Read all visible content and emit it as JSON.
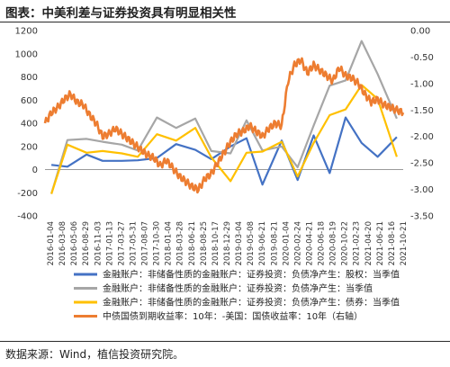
{
  "header": {
    "title": "图表：中美利差与证券投资具有明显相关性"
  },
  "footer": {
    "source": "数据来源：Wind，植信投资研究院。"
  },
  "chart_data": {
    "type": "line",
    "left_axis": {
      "ylim": [
        -400,
        1200
      ],
      "ticks": [
        "1200",
        "1000",
        "800",
        "600",
        "400",
        "200",
        "0",
        "-200",
        "-400"
      ]
    },
    "right_axis": {
      "ylim": [
        -3.5,
        0
      ],
      "ticks": [
        "0.00",
        "-0.50",
        "-1.00",
        "-1.50",
        "-2.00",
        "-2.50",
        "-3.00",
        "-3.50"
      ]
    },
    "x_ticks": [
      "2016-01-04",
      "2016-03-08",
      "2016-05-06",
      "2016-08-29",
      "2016-11-03",
      "2017-01-13",
      "2017-03-27",
      "2017-05-31",
      "2017-08-07",
      "2017-10-30",
      "2018-01-04",
      "2018-03-28",
      "2018-06-21",
      "2018-08-25",
      "2018-10-17",
      "2018-12-29",
      "2019-03-04",
      "2019-05-08",
      "2019-06-21",
      "2019-08-21",
      "2020-01-04",
      "2020-02-24",
      "2020-04-21",
      "2020-06-18",
      "2020-08-19",
      "2020-10-22",
      "2021-02-23",
      "2021-04-20",
      "2021-06-21",
      "2021-08-16",
      "2021-10-21"
    ],
    "grid": false,
    "legend_placement": "bottom",
    "series": [
      {
        "name": "金融账户：非储备性质的金融账户：证券投资：负债净产生：股权：当季值",
        "axis": "left",
        "color": "#4472c4",
        "step": "quarterly",
        "points": [
          [
            0.02,
            40
          ],
          [
            0.07,
            25
          ],
          [
            0.13,
            130
          ],
          [
            0.18,
            75
          ],
          [
            0.24,
            75
          ],
          [
            0.29,
            80
          ],
          [
            0.35,
            100
          ],
          [
            0.41,
            220
          ],
          [
            0.47,
            170
          ],
          [
            0.52,
            90
          ],
          [
            0.58,
            200
          ],
          [
            0.63,
            270
          ],
          [
            0.68,
            -130
          ],
          [
            0.74,
            250
          ],
          [
            0.79,
            -90
          ],
          [
            0.84,
            295
          ],
          [
            0.89,
            -30
          ],
          [
            0.94,
            450
          ],
          [
            0.99,
            230
          ],
          [
            1.04,
            110
          ],
          [
            1.1,
            280
          ]
        ]
      },
      {
        "name": "金融账户：非储备性质的金融账户：证券投资：负债净产生：当季值",
        "axis": "left",
        "color": "#a6a6a6",
        "step": "quarterly",
        "points": [
          [
            0.02,
            -210
          ],
          [
            0.07,
            255
          ],
          [
            0.13,
            265
          ],
          [
            0.18,
            240
          ],
          [
            0.24,
            215
          ],
          [
            0.29,
            165
          ],
          [
            0.35,
            450
          ],
          [
            0.41,
            360
          ],
          [
            0.47,
            440
          ],
          [
            0.52,
            160
          ],
          [
            0.58,
            140
          ],
          [
            0.63,
            425
          ],
          [
            0.68,
            165
          ],
          [
            0.74,
            200
          ],
          [
            0.79,
            20
          ],
          [
            0.84,
            380
          ],
          [
            0.89,
            725
          ],
          [
            0.94,
            770
          ],
          [
            0.99,
            1110
          ],
          [
            1.04,
            825
          ],
          [
            1.1,
            440
          ]
        ]
      },
      {
        "name": "金融账户：非储备性质的金融账户：证券投资：负债净产生：债券：当季值",
        "axis": "left",
        "color": "#ffc000",
        "step": "quarterly",
        "points": [
          [
            0.02,
            -210
          ],
          [
            0.07,
            215
          ],
          [
            0.13,
            145
          ],
          [
            0.18,
            160
          ],
          [
            0.24,
            140
          ],
          [
            0.29,
            110
          ],
          [
            0.35,
            305
          ],
          [
            0.41,
            250
          ],
          [
            0.47,
            360
          ],
          [
            0.52,
            105
          ],
          [
            0.58,
            -100
          ],
          [
            0.63,
            145
          ],
          [
            0.68,
            155
          ],
          [
            0.74,
            240
          ],
          [
            0.79,
            -60
          ],
          [
            0.84,
            230
          ],
          [
            0.89,
            470
          ],
          [
            0.94,
            520
          ],
          [
            0.99,
            730
          ],
          [
            1.04,
            610
          ],
          [
            1.1,
            110
          ]
        ]
      },
      {
        "name": "中债国债到期收益率：10年：-美国：国债收益率：10年（右轴）",
        "axis": "right",
        "color": "#ed7d31",
        "step": "daily",
        "points": [
          [
            0.0,
            -1.75
          ],
          [
            0.02,
            -1.55
          ],
          [
            0.04,
            -1.45
          ],
          [
            0.06,
            -1.3
          ],
          [
            0.08,
            -1.2
          ],
          [
            0.1,
            -1.35
          ],
          [
            0.12,
            -1.4
          ],
          [
            0.14,
            -1.6
          ],
          [
            0.16,
            -1.75
          ],
          [
            0.18,
            -2.0
          ],
          [
            0.2,
            -1.95
          ],
          [
            0.22,
            -1.85
          ],
          [
            0.24,
            -1.95
          ],
          [
            0.26,
            -2.05
          ],
          [
            0.28,
            -2.15
          ],
          [
            0.3,
            -2.25
          ],
          [
            0.32,
            -2.35
          ],
          [
            0.34,
            -2.4
          ],
          [
            0.36,
            -2.55
          ],
          [
            0.38,
            -2.45
          ],
          [
            0.4,
            -2.6
          ],
          [
            0.42,
            -2.75
          ],
          [
            0.44,
            -2.85
          ],
          [
            0.46,
            -2.95
          ],
          [
            0.48,
            -3.0
          ],
          [
            0.5,
            -2.8
          ],
          [
            0.52,
            -2.7
          ],
          [
            0.54,
            -2.5
          ],
          [
            0.56,
            -2.3
          ],
          [
            0.58,
            -2.1
          ],
          [
            0.6,
            -1.95
          ],
          [
            0.62,
            -1.9
          ],
          [
            0.64,
            -1.8
          ],
          [
            0.66,
            -1.9
          ],
          [
            0.68,
            -2.0
          ],
          [
            0.7,
            -1.85
          ],
          [
            0.72,
            -1.75
          ],
          [
            0.74,
            -1.8
          ],
          [
            0.76,
            -0.95
          ],
          [
            0.78,
            -0.65
          ],
          [
            0.8,
            -0.55
          ],
          [
            0.82,
            -0.8
          ],
          [
            0.84,
            -0.65
          ],
          [
            0.86,
            -0.75
          ],
          [
            0.88,
            -0.85
          ],
          [
            0.9,
            -0.95
          ],
          [
            0.92,
            -0.7
          ],
          [
            0.94,
            -0.85
          ],
          [
            0.96,
            -0.9
          ],
          [
            0.98,
            -1.0
          ],
          [
            1.0,
            -1.2
          ],
          [
            1.02,
            -1.35
          ],
          [
            1.04,
            -1.3
          ],
          [
            1.06,
            -1.4
          ],
          [
            1.08,
            -1.45
          ],
          [
            1.1,
            -1.5
          ],
          [
            1.12,
            -1.55
          ]
        ]
      }
    ]
  }
}
